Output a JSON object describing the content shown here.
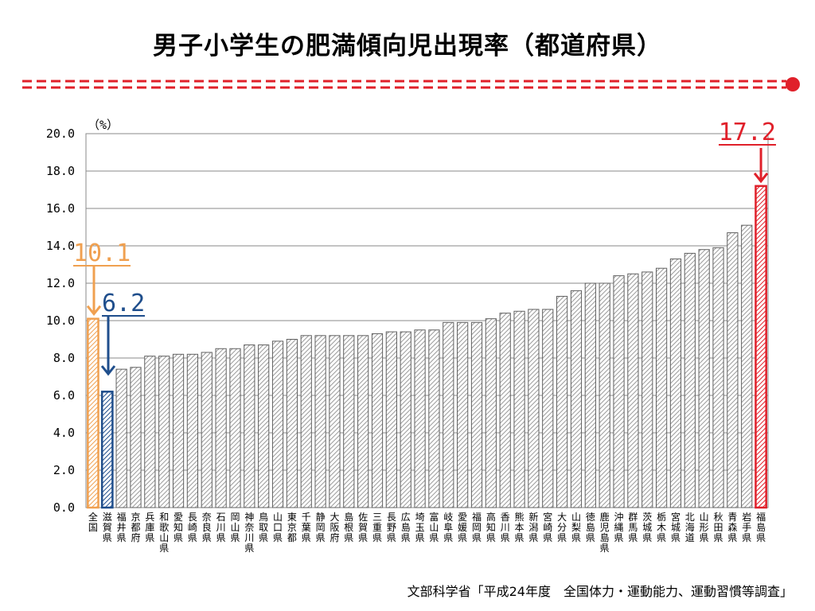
{
  "title": "男子小学生の肥満傾向児出現率（都道府県）",
  "source": "文部科学省「平成24年度　全国体力・運動能力、運動習慣等調査」",
  "colors": {
    "title_rule": "#e0202a",
    "bar_fill": "#d8d8d8",
    "bar_stroke": "#606060",
    "highlight_national": "#f0a050",
    "highlight_min": "#1f4e8c",
    "highlight_max": "#e0202a"
  },
  "chart_data": {
    "type": "bar",
    "unit_label": "（%）",
    "ylim": [
      0,
      20
    ],
    "yticks": [
      "0.0",
      "2.0",
      "4.0",
      "6.0",
      "8.0",
      "10.0",
      "12.0",
      "14.0",
      "16.0",
      "18.0",
      "20.0"
    ],
    "grid": true,
    "categories": [
      "全国",
      "滋賀県",
      "福井県",
      "京都府",
      "兵庫県",
      "和歌山県",
      "愛知県",
      "長崎県",
      "奈良県",
      "石川県",
      "岡山県",
      "神奈川県",
      "鳥取県",
      "山口県",
      "東京都",
      "千葉県",
      "静岡県",
      "大阪府",
      "島根県",
      "佐賀県",
      "三重県",
      "長野県",
      "広島県",
      "埼玉県",
      "富山県",
      "岐阜県",
      "愛媛県",
      "福岡県",
      "高知県",
      "香川県",
      "熊本県",
      "新潟県",
      "宮崎県",
      "大分県",
      "山梨県",
      "徳島県",
      "鹿児島県",
      "沖縄県",
      "群馬県",
      "茨城県",
      "栃木県",
      "宮城県",
      "北海道",
      "山形県",
      "秋田県",
      "青森県",
      "岩手県",
      "福島県"
    ],
    "values": [
      10.1,
      6.2,
      7.4,
      7.5,
      8.1,
      8.1,
      8.2,
      8.2,
      8.3,
      8.5,
      8.5,
      8.7,
      8.7,
      8.9,
      9.0,
      9.2,
      9.2,
      9.2,
      9.2,
      9.2,
      9.3,
      9.4,
      9.4,
      9.5,
      9.5,
      9.9,
      9.9,
      9.9,
      10.1,
      10.4,
      10.5,
      10.6,
      10.6,
      11.3,
      11.6,
      12.0,
      12.0,
      12.4,
      12.5,
      12.6,
      12.8,
      13.3,
      13.6,
      13.8,
      13.9,
      14.7,
      15.1,
      17.2
    ],
    "annotations": [
      {
        "label": "10.1",
        "category": "全国",
        "color": "orange"
      },
      {
        "label": "6.2",
        "category": "滋賀県",
        "color": "blue"
      },
      {
        "label": "17.2",
        "category": "福島県",
        "color": "red"
      }
    ]
  }
}
